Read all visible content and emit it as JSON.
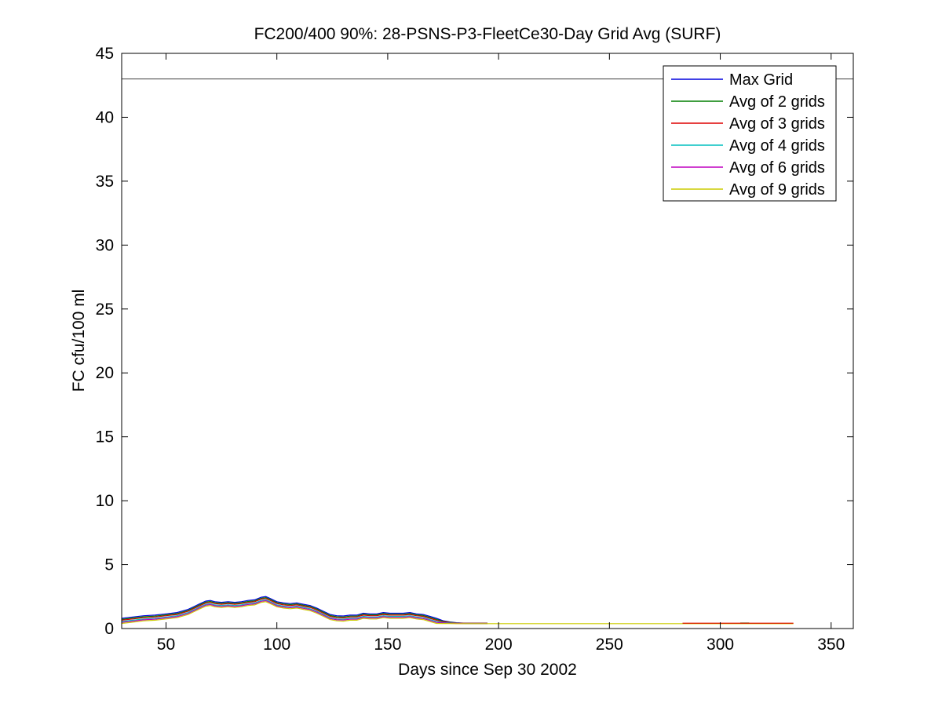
{
  "figure": {
    "background": "#ffffff",
    "axis_color": "#000000",
    "text_color": "#000000"
  },
  "chart_data": {
    "type": "line",
    "title": "FC200/400 90%: 28-PSNS-P3-FleetCe30-Day Grid Avg (SURF)",
    "xlabel": "Days since Sep 30 2002",
    "ylabel": "FC cfu/100 ml",
    "xlim": [
      30,
      360
    ],
    "ylim": [
      0,
      45
    ],
    "xticks": [
      50,
      100,
      150,
      200,
      250,
      300,
      350
    ],
    "yticks": [
      0,
      5,
      10,
      15,
      20,
      25,
      30,
      35,
      40,
      45
    ],
    "grid": false,
    "legend_position": "top-right",
    "threshold_line": {
      "y": 43,
      "color": "#3f3f3f",
      "width": 1
    },
    "x": [
      30,
      35,
      40,
      45,
      50,
      55,
      60,
      63,
      66,
      68,
      70,
      72,
      75,
      78,
      81,
      84,
      87,
      90,
      93,
      95,
      97,
      100,
      103,
      106,
      109,
      112,
      115,
      118,
      121,
      124,
      127,
      130,
      133,
      136,
      139,
      142,
      145,
      148,
      151,
      154,
      157,
      160,
      163,
      166,
      169,
      172,
      175,
      178,
      181,
      185,
      190,
      195
    ],
    "base_values": [
      0.6,
      0.7,
      0.8,
      0.85,
      0.95,
      1.05,
      1.3,
      1.55,
      1.8,
      1.95,
      2.0,
      1.9,
      1.85,
      1.9,
      1.85,
      1.9,
      2.0,
      2.05,
      2.25,
      2.3,
      2.15,
      1.9,
      1.8,
      1.75,
      1.8,
      1.7,
      1.6,
      1.4,
      1.15,
      0.9,
      0.8,
      0.78,
      0.85,
      0.85,
      1.0,
      0.95,
      0.95,
      1.05,
      1.0,
      1.0,
      1.0,
      1.05,
      0.95,
      0.9,
      0.75,
      0.6,
      0.5,
      0.45,
      0.42,
      0.4,
      0.4,
      0.4
    ],
    "offset_taper": {
      "base_floor": 0.38,
      "range": 0.22,
      "min_scale": 0.1,
      "note": "series y = base + offset * clamp((base-0.38)/0.22, 0.1, 1); bundle converges where curve flattens near 0.4"
    },
    "series": [
      {
        "name": "Max Grid",
        "color": "#0000dd",
        "offset": 0.2
      },
      {
        "name": "Avg of 2 grids",
        "color": "#007f00",
        "offset": 0.12,
        "extra_segments": [
          {
            "x": [
              309,
              313
            ],
            "y": [
              0.43,
              0.43
            ]
          }
        ]
      },
      {
        "name": "Avg of 3 grids",
        "color": "#dd0000",
        "offset": 0.05,
        "extra_segments": [
          {
            "x": [
              283,
              333
            ],
            "y": [
              0.42,
              0.42
            ]
          }
        ]
      },
      {
        "name": "Avg of 4 grids",
        "color": "#00bfbf",
        "offset": -0.05
      },
      {
        "name": "Avg of 6 grids",
        "color": "#bf00bf",
        "offset": -0.12
      },
      {
        "name": "Avg of 9 grids",
        "color": "#cccc00",
        "offset": -0.2,
        "tail": {
          "x": [
            195,
            283,
            333
          ],
          "y": [
            0.38,
            0.38,
            0.38
          ]
        }
      }
    ]
  }
}
